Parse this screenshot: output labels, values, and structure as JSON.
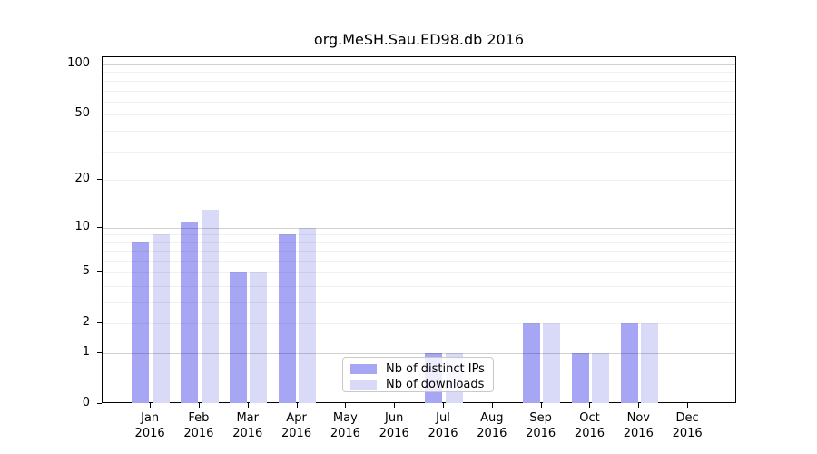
{
  "chart_data": {
    "type": "bar",
    "title": "org.MeSH.Sau.ED98.db 2016",
    "categories": [
      "Jan",
      "Feb",
      "Mar",
      "Apr",
      "May",
      "Jun",
      "Jul",
      "Aug",
      "Sep",
      "Oct",
      "Nov",
      "Dec"
    ],
    "category_year": "2016",
    "series": [
      {
        "name": "Nb of distinct IPs",
        "color": "#a6a6f5",
        "values": [
          8,
          11,
          5,
          9,
          0,
          0,
          1,
          0,
          2,
          1,
          2,
          0
        ]
      },
      {
        "name": "Nb of downloads",
        "color": "#d9d9f8",
        "values": [
          9,
          13,
          5,
          10,
          0,
          0,
          1,
          0,
          2,
          1,
          2,
          0
        ]
      }
    ],
    "xlabel": "",
    "ylabel": "",
    "y_axis": {
      "scale": "log10(1+value)",
      "tick_labels": [
        "0",
        "1",
        "2",
        "5",
        "10",
        "20",
        "50",
        "100"
      ],
      "tick_values": [
        0,
        1,
        2,
        5,
        10,
        20,
        50,
        100
      ],
      "major_gridlines": [
        1,
        10,
        100
      ],
      "minor_gridlines": [
        2,
        3,
        4,
        5,
        6,
        7,
        8,
        9,
        20,
        30,
        40,
        50,
        60,
        70,
        80,
        90
      ],
      "ylim": [
        0,
        111
      ]
    },
    "grid": "on",
    "legend": {
      "position": "lower-center",
      "entries": [
        "Nb of distinct IPs",
        "Nb of downloads"
      ]
    }
  }
}
